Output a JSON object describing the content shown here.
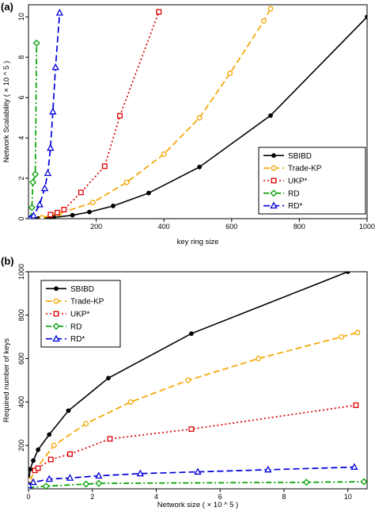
{
  "chart_data": [
    {
      "panel_label": "(a)",
      "type": "line",
      "xlabel": "key ring size",
      "ylabel": "Network Scalability  ( × 10 ^ 5 )",
      "xlim": [
        0,
        1000
      ],
      "ylim": [
        0,
        10.6
      ],
      "xticks": [
        200,
        400,
        600,
        800,
        1000
      ],
      "yticks": [
        0,
        2,
        4,
        6,
        8,
        10
      ],
      "grid": false,
      "legend_position": "bottom-right",
      "series": [
        {
          "name": "SBIBD",
          "color": "#000000",
          "marker": "dot",
          "dash": "solid",
          "x": [
            30,
            75,
            130,
            180,
            250,
            355,
            505,
            715,
            1000
          ],
          "y": [
            0.01,
            0.06,
            0.17,
            0.33,
            0.63,
            1.27,
            2.56,
            5.11,
            10.0
          ]
        },
        {
          "name": "Trade-KP",
          "color": "#f5a500",
          "marker": "circle",
          "dash": "long",
          "x": [
            40,
            90,
            190,
            290,
            400,
            505,
            595,
            695,
            715
          ],
          "y": [
            0.05,
            0.25,
            0.8,
            1.8,
            3.2,
            5.0,
            7.2,
            9.8,
            10.4
          ]
        },
        {
          "name": "UKP*",
          "color": "#dd0000",
          "marker": "square",
          "dash": "dot",
          "x": [
            65,
            85,
            105,
            155,
            225,
            270,
            385
          ],
          "y": [
            0.2,
            0.3,
            0.45,
            1.3,
            2.6,
            5.1,
            10.25
          ]
        },
        {
          "name": "RD",
          "color": "#00a000",
          "marker": "diamond",
          "dash": "dashdot",
          "x": [
            8,
            10,
            13,
            20,
            24
          ],
          "y": [
            0.01,
            0.55,
            1.8,
            2.2,
            8.7
          ]
        },
        {
          "name": "RD*",
          "color": "#0000dd",
          "marker": "triangle",
          "dash": "long",
          "x": [
            5,
            15,
            33,
            48,
            57,
            65,
            72,
            80,
            92
          ],
          "y": [
            0.01,
            0.15,
            0.7,
            1.5,
            2.25,
            3.5,
            5.3,
            7.5,
            10.2
          ]
        }
      ]
    },
    {
      "panel_label": "(b)",
      "type": "line",
      "xlabel": "Network size  ( × 10 ^ 5 )",
      "ylabel": "Required number of keys",
      "xlim": [
        0,
        10.6
      ],
      "ylim": [
        0,
        1000
      ],
      "xticks": [
        0,
        2,
        4,
        6,
        8,
        10
      ],
      "yticks": [
        200,
        400,
        600,
        800,
        1000
      ],
      "grid": false,
      "legend_position": "top-left",
      "series": [
        {
          "name": "SBIBD",
          "color": "#000000",
          "marker": "dot",
          "dash": "solid",
          "x": [
            0.01,
            0.05,
            0.15,
            0.3,
            0.65,
            1.25,
            2.5,
            5.1,
            10.0
          ],
          "y": [
            30,
            90,
            130,
            180,
            250,
            360,
            510,
            715,
            1000
          ]
        },
        {
          "name": "Trade-KP",
          "color": "#f5a500",
          "marker": "circle",
          "dash": "long",
          "x": [
            0.05,
            0.2,
            0.8,
            1.8,
            3.2,
            5.0,
            7.2,
            9.8,
            10.3
          ],
          "y": [
            40,
            85,
            200,
            300,
            400,
            500,
            600,
            700,
            720
          ]
        },
        {
          "name": "UKP*",
          "color": "#dd0000",
          "marker": "square",
          "dash": "dot",
          "x": [
            0.2,
            0.3,
            0.7,
            1.3,
            2.55,
            5.1,
            10.25
          ],
          "y": [
            85,
            95,
            135,
            160,
            230,
            275,
            385
          ]
        },
        {
          "name": "RD",
          "color": "#00a000",
          "marker": "diamond",
          "dash": "dashdot",
          "x": [
            0.01,
            0.55,
            1.8,
            2.2,
            8.7,
            10.5
          ],
          "y": [
            5,
            12,
            22,
            25,
            30,
            33
          ]
        },
        {
          "name": "RD*",
          "color": "#0000dd",
          "marker": "triangle",
          "dash": "long",
          "x": [
            0.01,
            0.15,
            0.65,
            1.3,
            2.2,
            3.5,
            5.3,
            7.5,
            10.2
          ],
          "y": [
            15,
            30,
            45,
            50,
            60,
            70,
            78,
            88,
            100
          ]
        }
      ]
    }
  ]
}
